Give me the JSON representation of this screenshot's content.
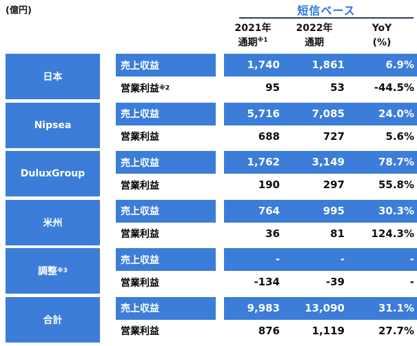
{
  "unit_label": "(億円)",
  "header": {
    "basis_label": "短信ベース",
    "col1_line1": "2021年",
    "col1_line2": "通期",
    "col1_sup": "※1",
    "col2_line1": "2022年",
    "col2_line2": "通期",
    "col2_sup": "",
    "col3_line1": "YoY",
    "col3_line2": "(%)",
    "col3_sup": ""
  },
  "colors": {
    "band_blue": "#3b7dd8",
    "basis_text_blue": "#2575dd",
    "underline_dark": "#2b3f54",
    "text_black": "#0d0d0d",
    "text_white": "#ffffff"
  },
  "sections": [
    {
      "name": "日本",
      "name_sup": "",
      "revenue": {
        "label": "売上収益",
        "label_sup": "",
        "y2021": "1,740",
        "y2022": "1,861",
        "yoy": "6.9%"
      },
      "profit": {
        "label": "営業利益",
        "label_sup": "※2",
        "y2021": "95",
        "y2022": "53",
        "yoy": "-44.5%"
      }
    },
    {
      "name": "Nipsea",
      "name_sup": "",
      "revenue": {
        "label": "売上収益",
        "label_sup": "",
        "y2021": "5,716",
        "y2022": "7,085",
        "yoy": "24.0%"
      },
      "profit": {
        "label": "営業利益",
        "label_sup": "",
        "y2021": "688",
        "y2022": "727",
        "yoy": "5.6%"
      }
    },
    {
      "name": "DuluxGroup",
      "name_sup": "",
      "revenue": {
        "label": "売上収益",
        "label_sup": "",
        "y2021": "1,762",
        "y2022": "3,149",
        "yoy": "78.7%"
      },
      "profit": {
        "label": "営業利益",
        "label_sup": "",
        "y2021": "190",
        "y2022": "297",
        "yoy": "55.8%"
      }
    },
    {
      "name": "米州",
      "name_sup": "",
      "revenue": {
        "label": "売上収益",
        "label_sup": "",
        "y2021": "764",
        "y2022": "995",
        "yoy": "30.3%"
      },
      "profit": {
        "label": "営業利益",
        "label_sup": "",
        "y2021": "36",
        "y2022": "81",
        "yoy": "124.3%"
      }
    },
    {
      "name": "調整",
      "name_sup": "※3",
      "revenue": {
        "label": "売上収益",
        "label_sup": "",
        "y2021": "-",
        "y2022": "-",
        "yoy": "-"
      },
      "profit": {
        "label": "営業利益",
        "label_sup": "",
        "y2021": "-134",
        "y2022": "-39",
        "yoy": "-"
      }
    },
    {
      "name": "合計",
      "name_sup": "",
      "revenue": {
        "label": "売上収益",
        "label_sup": "",
        "y2021": "9,983",
        "y2022": "13,090",
        "yoy": "31.1%"
      },
      "profit": {
        "label": "営業利益",
        "label_sup": "",
        "y2021": "876",
        "y2022": "1,119",
        "yoy": "27.7%"
      }
    }
  ]
}
